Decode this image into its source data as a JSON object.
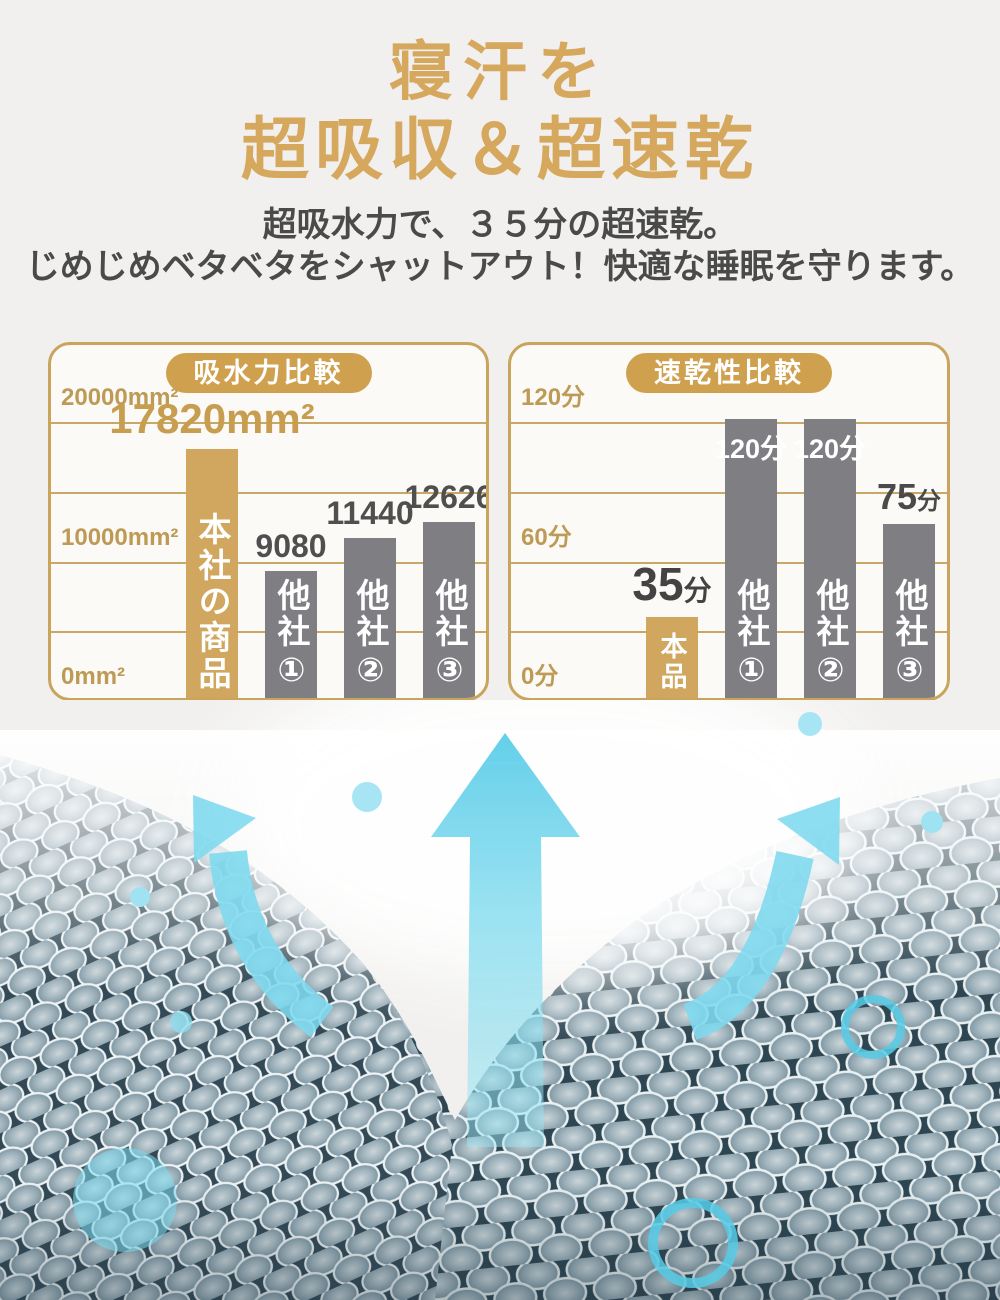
{
  "header": {
    "title_line1": "寝汗を",
    "title_line2": "超吸収＆超速乾",
    "subtitle_line1": "超吸水力で、３５分の超速乾。",
    "subtitle_line2": "じめじめベタベタをシャットアウト！快適な睡眠を守ります。"
  },
  "colors": {
    "page_bg": "#F1F0EE",
    "title_gold": "#D5A85E",
    "panel_border": "#C9A45D",
    "pill_bg": "#CFA14E",
    "gridline": "#C9A767",
    "bar_gold": "#D1A75F",
    "bar_gray": "#7F7E82",
    "arrow_cyan": "#7EDAEF",
    "droplet_cyan": "#A7E5F4"
  },
  "chart_data": [
    {
      "type": "bar",
      "title": "吸水力比較",
      "categories": [
        "本社の商品",
        "他社①",
        "他社②",
        "他社③"
      ],
      "values": [
        17820,
        9080,
        11440,
        12626
      ],
      "unit": "mm²",
      "ylim": [
        0,
        20000
      ],
      "gridline_step": 5000,
      "grid": true,
      "legend": "none",
      "yticks": [
        {
          "label": "20000mm²",
          "value": 20000
        },
        {
          "label": "10000mm²",
          "value": 10000
        },
        {
          "label": "0mm²",
          "value": 0
        }
      ],
      "bars": [
        {
          "category": "本社の商品",
          "value": 17820,
          "highlight": true,
          "label": {
            "text": "17820mm²",
            "pos": "above",
            "style": "gold"
          }
        },
        {
          "category": "他社①",
          "value": 9080,
          "label": {
            "text": "9080",
            "pos": "above",
            "style": "plain"
          }
        },
        {
          "category": "他社②",
          "value": 11440,
          "label": {
            "text": "11440",
            "pos": "above",
            "style": "plain"
          }
        },
        {
          "category": "他社③",
          "value": 12626,
          "label": {
            "text": "12626",
            "pos": "above",
            "style": "plain"
          }
        }
      ]
    },
    {
      "type": "bar",
      "title": "速乾性比較",
      "categories": [
        "本品",
        "他社①",
        "他社②",
        "他社③"
      ],
      "values": [
        35,
        120,
        120,
        75
      ],
      "unit": "分",
      "ylim": [
        0,
        120
      ],
      "gridline_step": 30,
      "grid": true,
      "legend": "none",
      "yticks": [
        {
          "label": "120分",
          "value": 120
        },
        {
          "label": "60分",
          "value": 60
        },
        {
          "label": "0分",
          "value": 0
        }
      ],
      "bars": [
        {
          "category": "本品",
          "value": 35,
          "highlight": true,
          "label": {
            "text": "35分",
            "num": "35",
            "unit": "分",
            "pos": "above",
            "style": "big"
          }
        },
        {
          "category": "他社①",
          "value": 120,
          "label": {
            "text": "120分",
            "pos": "inside",
            "style": "inside"
          }
        },
        {
          "category": "他社②",
          "value": 120,
          "label": {
            "text": "120分",
            "pos": "inside",
            "style": "inside"
          }
        },
        {
          "category": "他社③",
          "value": 75,
          "label": {
            "text": "75分",
            "num": "75",
            "unit": "分",
            "pos": "above",
            "style": "med"
          }
        }
      ]
    }
  ],
  "illustration": {
    "icons": [
      "airflow-arrow-left",
      "airflow-arrow-center",
      "airflow-arrow-right",
      "water-droplet",
      "water-bubble-ring"
    ],
    "subject": "mesh-fabric-texture"
  }
}
